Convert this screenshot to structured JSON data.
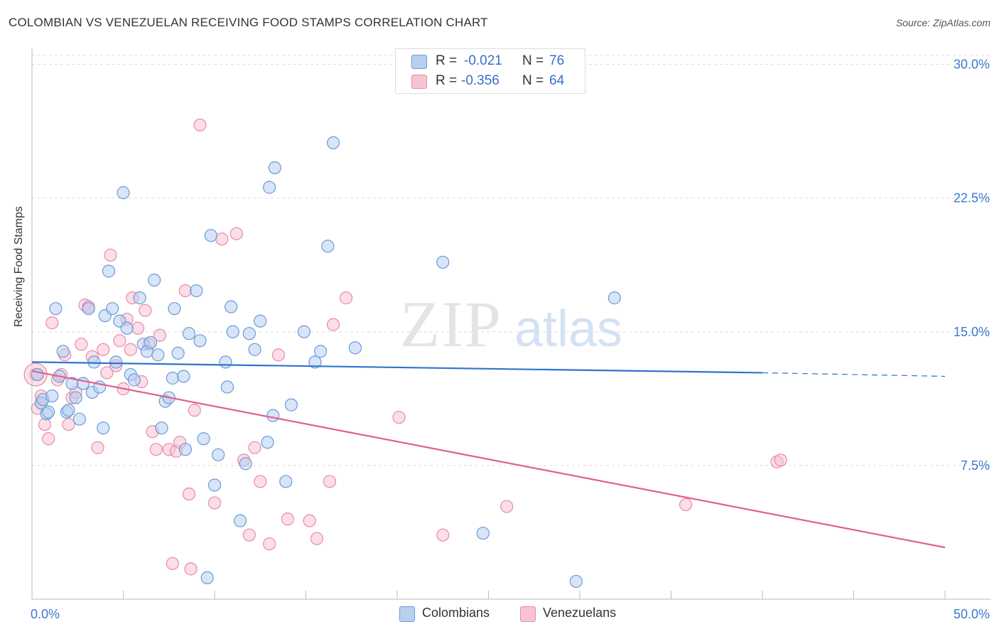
{
  "title": "COLOMBIAN VS VENEZUELAN RECEIVING FOOD STAMPS CORRELATION CHART",
  "source": "Source: ZipAtlas.com",
  "watermark": {
    "zip": "ZIP",
    "atlas": "atlas"
  },
  "legend": {
    "r_label": "R =",
    "n_label": "N =",
    "colombians": {
      "r": "-0.021",
      "n": "76"
    },
    "venezuelans": {
      "r": "-0.356",
      "n": "64"
    }
  },
  "bottom_legend": {
    "colombians": "Colombians",
    "venezuelans": "Venezuelans"
  },
  "colors": {
    "blue_fill": "#b8d0f0",
    "blue_stroke": "#6a9bd8",
    "blue_line": "#2f74d0",
    "pink_fill": "#f8c3d4",
    "pink_stroke": "#e88aa8",
    "pink_line": "#e0608c",
    "axis_text": "#3b78d0",
    "grid": "#dddddd"
  },
  "chart_data": {
    "type": "scatter",
    "title": "COLOMBIAN VS VENEZUELAN RECEIVING FOOD STAMPS CORRELATION CHART",
    "xlabel": "",
    "ylabel": "Receiving Food Stamps",
    "xlim": [
      0,
      50
    ],
    "ylim": [
      0,
      30.5
    ],
    "x_tick_labels": [
      "0.0%",
      "50.0%"
    ],
    "y_ticks": [
      7.5,
      15.0,
      22.5,
      30.0
    ],
    "y_tick_labels": [
      "7.5%",
      "15.0%",
      "22.5%",
      "30.0%"
    ],
    "grid": "horizontal dashed",
    "series": [
      {
        "name": "Colombians",
        "trend": {
          "x0": 0,
          "y0": 13.3,
          "x1": 40,
          "y1": 12.7,
          "dashed_to_x": 50,
          "dashed_y": 12.5
        },
        "points": [
          [
            0.3,
            12.6
          ],
          [
            0.5,
            11.0
          ],
          [
            0.6,
            11.2
          ],
          [
            0.8,
            10.4
          ],
          [
            0.9,
            10.5
          ],
          [
            1.1,
            11.4
          ],
          [
            1.3,
            16.3
          ],
          [
            1.5,
            12.5
          ],
          [
            1.7,
            13.9
          ],
          [
            1.9,
            10.5
          ],
          [
            2.0,
            10.6
          ],
          [
            2.2,
            12.1
          ],
          [
            2.4,
            11.3
          ],
          [
            2.6,
            10.1
          ],
          [
            2.8,
            12.1
          ],
          [
            3.1,
            16.3
          ],
          [
            3.3,
            11.6
          ],
          [
            3.4,
            13.3
          ],
          [
            3.7,
            11.9
          ],
          [
            3.9,
            9.6
          ],
          [
            4.0,
            15.9
          ],
          [
            4.2,
            18.4
          ],
          [
            4.4,
            16.3
          ],
          [
            4.6,
            13.3
          ],
          [
            4.8,
            15.6
          ],
          [
            5.0,
            22.8
          ],
          [
            5.2,
            15.2
          ],
          [
            5.4,
            12.6
          ],
          [
            5.6,
            12.3
          ],
          [
            5.9,
            16.9
          ],
          [
            6.1,
            14.3
          ],
          [
            6.3,
            13.9
          ],
          [
            6.5,
            14.4
          ],
          [
            6.7,
            17.9
          ],
          [
            6.9,
            13.7
          ],
          [
            7.1,
            9.6
          ],
          [
            7.3,
            11.1
          ],
          [
            7.5,
            11.3
          ],
          [
            7.7,
            12.4
          ],
          [
            7.8,
            16.3
          ],
          [
            8.0,
            13.8
          ],
          [
            8.3,
            12.5
          ],
          [
            8.4,
            8.4
          ],
          [
            8.6,
            14.9
          ],
          [
            9.0,
            17.3
          ],
          [
            9.2,
            14.5
          ],
          [
            9.4,
            9.0
          ],
          [
            9.6,
            1.2
          ],
          [
            9.8,
            20.4
          ],
          [
            10.0,
            6.4
          ],
          [
            10.2,
            8.1
          ],
          [
            10.6,
            13.3
          ],
          [
            10.7,
            11.9
          ],
          [
            10.9,
            16.4
          ],
          [
            11.0,
            15.0
          ],
          [
            11.4,
            4.4
          ],
          [
            11.7,
            7.6
          ],
          [
            11.9,
            14.9
          ],
          [
            12.2,
            14.0
          ],
          [
            12.5,
            15.6
          ],
          [
            12.9,
            8.8
          ],
          [
            13.0,
            23.1
          ],
          [
            13.2,
            10.3
          ],
          [
            13.3,
            24.2
          ],
          [
            13.9,
            6.6
          ],
          [
            14.2,
            10.9
          ],
          [
            14.9,
            15.0
          ],
          [
            15.5,
            13.3
          ],
          [
            15.8,
            13.9
          ],
          [
            16.2,
            19.8
          ],
          [
            16.5,
            25.6
          ],
          [
            17.7,
            14.1
          ],
          [
            22.5,
            18.9
          ],
          [
            24.7,
            3.7
          ],
          [
            29.8,
            1.0
          ],
          [
            31.9,
            16.9
          ]
        ]
      },
      {
        "name": "Venezuelans",
        "trend": {
          "x0": 0,
          "y0": 12.8,
          "x1": 50,
          "y1": 2.9
        },
        "points": [
          [
            0.2,
            12.6
          ],
          [
            0.3,
            10.7
          ],
          [
            0.5,
            11.4
          ],
          [
            0.7,
            9.8
          ],
          [
            0.9,
            9.0
          ],
          [
            1.1,
            15.5
          ],
          [
            1.4,
            12.3
          ],
          [
            1.6,
            12.6
          ],
          [
            1.8,
            13.7
          ],
          [
            2.0,
            9.8
          ],
          [
            2.2,
            11.3
          ],
          [
            2.4,
            11.6
          ],
          [
            2.7,
            14.3
          ],
          [
            2.9,
            16.5
          ],
          [
            3.1,
            16.4
          ],
          [
            3.3,
            13.6
          ],
          [
            3.6,
            8.5
          ],
          [
            3.9,
            14.0
          ],
          [
            4.1,
            12.7
          ],
          [
            4.3,
            19.3
          ],
          [
            4.6,
            13.1
          ],
          [
            4.8,
            14.5
          ],
          [
            5.0,
            11.8
          ],
          [
            5.2,
            15.7
          ],
          [
            5.4,
            14.0
          ],
          [
            5.5,
            16.9
          ],
          [
            5.8,
            15.2
          ],
          [
            6.0,
            12.2
          ],
          [
            6.2,
            16.2
          ],
          [
            6.4,
            14.3
          ],
          [
            6.6,
            9.4
          ],
          [
            6.8,
            8.4
          ],
          [
            7.0,
            14.8
          ],
          [
            7.5,
            8.4
          ],
          [
            7.7,
            2.0
          ],
          [
            7.9,
            8.3
          ],
          [
            8.1,
            8.8
          ],
          [
            8.4,
            17.3
          ],
          [
            8.6,
            5.9
          ],
          [
            8.7,
            1.7
          ],
          [
            8.9,
            10.6
          ],
          [
            9.2,
            26.6
          ],
          [
            10.0,
            5.4
          ],
          [
            10.4,
            20.2
          ],
          [
            11.2,
            20.5
          ],
          [
            11.6,
            7.8
          ],
          [
            11.9,
            3.6
          ],
          [
            12.2,
            8.5
          ],
          [
            12.5,
            6.6
          ],
          [
            13.0,
            3.1
          ],
          [
            13.5,
            13.7
          ],
          [
            14.0,
            4.5
          ],
          [
            15.2,
            4.4
          ],
          [
            15.6,
            3.4
          ],
          [
            16.3,
            6.6
          ],
          [
            16.5,
            15.4
          ],
          [
            17.2,
            16.9
          ],
          [
            20.1,
            10.2
          ],
          [
            22.5,
            3.6
          ],
          [
            26.0,
            5.2
          ],
          [
            35.8,
            5.3
          ],
          [
            40.8,
            7.7
          ],
          [
            41.0,
            7.8
          ],
          [
            0.5,
            11.0
          ]
        ]
      }
    ]
  }
}
